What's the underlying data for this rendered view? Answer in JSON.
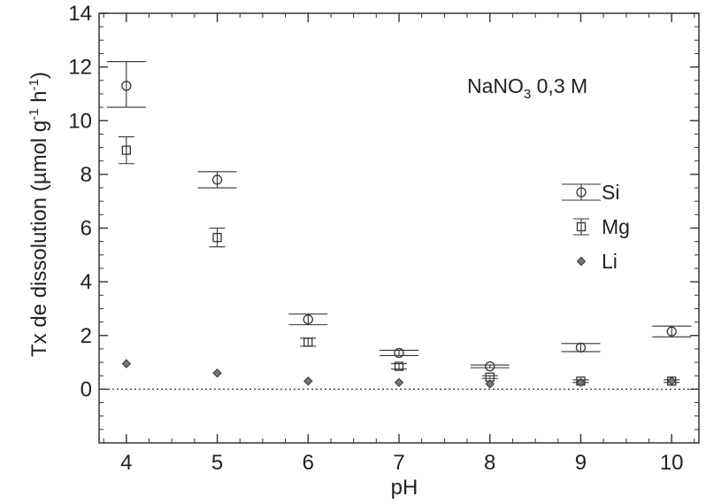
{
  "chart_data": {
    "type": "scatter",
    "title": "",
    "xlabel": "pH",
    "ylabel_main": "Tx de dissolution (µmol g",
    "ylabel_exp1": "-1",
    "ylabel_mid": " h",
    "ylabel_exp2": "-1",
    "ylabel_end": ")",
    "annotation_main": "NaNO",
    "annotation_sub": "3",
    "annotation_end": " 0,3 M",
    "xlim": [
      3.7,
      10.3
    ],
    "ylim": [
      -2,
      14
    ],
    "xticks": [
      4,
      5,
      6,
      7,
      8,
      9,
      10
    ],
    "yticks": [
      0,
      2,
      4,
      6,
      8,
      10,
      12,
      14
    ],
    "baseline": 0,
    "legend_position": "right",
    "series": [
      {
        "name": "Si",
        "marker": "circle",
        "points": [
          {
            "x": 4,
            "y": 11.3,
            "err_low": 10.5,
            "err_high": 12.2
          },
          {
            "x": 5,
            "y": 7.8,
            "err_low": 7.5,
            "err_high": 8.1
          },
          {
            "x": 6,
            "y": 2.6,
            "err_low": 2.4,
            "err_high": 2.8
          },
          {
            "x": 7,
            "y": 1.35,
            "err_low": 1.25,
            "err_high": 1.45
          },
          {
            "x": 8,
            "y": 0.85,
            "err_low": 0.8,
            "err_high": 0.9
          },
          {
            "x": 9,
            "y": 1.55,
            "err_low": 1.4,
            "err_high": 1.7
          },
          {
            "x": 10,
            "y": 2.15,
            "err_low": 1.95,
            "err_high": 2.35
          }
        ]
      },
      {
        "name": "Mg",
        "marker": "square",
        "points": [
          {
            "x": 4,
            "y": 8.9,
            "err_low": 8.4,
            "err_high": 9.4
          },
          {
            "x": 5,
            "y": 5.65,
            "err_low": 5.3,
            "err_high": 6.0
          },
          {
            "x": 6,
            "y": 1.75,
            "err_low": 1.6,
            "err_high": 1.9
          },
          {
            "x": 7,
            "y": 0.85,
            "err_low": 0.75,
            "err_high": 0.95
          },
          {
            "x": 8,
            "y": 0.45,
            "err_low": 0.4,
            "err_high": 0.5
          },
          {
            "x": 9,
            "y": 0.3,
            "err_low": 0.25,
            "err_high": 0.35
          },
          {
            "x": 10,
            "y": 0.3,
            "err_low": 0.25,
            "err_high": 0.35
          }
        ]
      },
      {
        "name": "Li",
        "marker": "diamond",
        "points": [
          {
            "x": 4,
            "y": 0.95
          },
          {
            "x": 5,
            "y": 0.6
          },
          {
            "x": 6,
            "y": 0.3
          },
          {
            "x": 7,
            "y": 0.25
          },
          {
            "x": 8,
            "y": 0.2
          },
          {
            "x": 9,
            "y": 0.25
          },
          {
            "x": 10,
            "y": 0.3
          }
        ]
      }
    ]
  }
}
